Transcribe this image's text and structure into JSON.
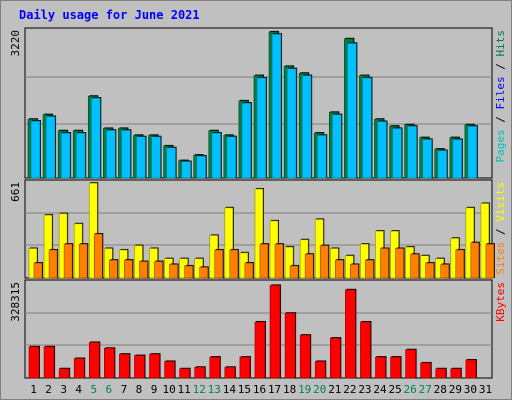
{
  "title": "Daily usage for June 2021",
  "chart_data": {
    "type": "bar",
    "title": "Daily usage for June 2021",
    "days": [
      "1",
      "2",
      "3",
      "4",
      "5",
      "6",
      "7",
      "8",
      "9",
      "10",
      "11",
      "12",
      "13",
      "14",
      "15",
      "16",
      "17",
      "18",
      "19",
      "20",
      "21",
      "22",
      "23",
      "24",
      "25",
      "26",
      "27",
      "28",
      "29",
      "30",
      "31"
    ],
    "weekend_days": [
      "5",
      "6",
      "12",
      "13",
      "19",
      "20",
      "26",
      "27"
    ],
    "colors": {
      "hits": "#008040",
      "files": "#00c0ff",
      "pages": "#00e0ff",
      "visits": "#ffff00",
      "sites": "#ff8000",
      "kbytes": "#ff0000",
      "weekday_label": "#000000",
      "weekend_label": "#00805c",
      "title": "#0000ff"
    },
    "panels": [
      {
        "id": "hits",
        "ymax_label": "3220",
        "ymax": 3220,
        "legend": [
          {
            "text": "Pages",
            "color": "#00c0c0"
          },
          {
            "text": " / ",
            "color": "#000000"
          },
          {
            "text": "Files",
            "color": "#0000ff"
          },
          {
            "text": " / ",
            "color": "#000000"
          },
          {
            "text": "Hits",
            "color": "#008040"
          }
        ],
        "series": [
          {
            "name": "Hits",
            "values": [
              1300,
              1400,
              1050,
              1050,
              1800,
              1100,
              1100,
              950,
              950,
              720,
              400,
              520,
              1050,
              950,
              1700,
              2250,
              3200,
              2450,
              2300,
              1000,
              1450,
              3050,
              2250,
              1300,
              1150,
              1180,
              900,
              650,
              900,
              1180,
              0
            ]
          },
          {
            "name": "Files",
            "values": [
              1260,
              1360,
              1000,
              1000,
              1760,
              1060,
              1060,
              920,
              920,
              680,
              380,
              500,
              1000,
              920,
              1650,
              2200,
              3150,
              2400,
              2250,
              950,
              1400,
              2950,
              2200,
              1250,
              1100,
              1150,
              860,
              620,
              860,
              1150,
              0
            ]
          }
        ]
      },
      {
        "id": "visits",
        "ymax_label": "661",
        "ymax": 661,
        "legend": [
          {
            "text": "Sites",
            "color": "#ff8000"
          },
          {
            "text": " / ",
            "color": "#000000"
          },
          {
            "text": "Visits",
            "color": "#ffff00"
          }
        ],
        "series": [
          {
            "name": "Visits",
            "values": [
              210,
              440,
              450,
              380,
              660,
              210,
              200,
              230,
              210,
              140,
              140,
              140,
              300,
              490,
              180,
              620,
              400,
              220,
              270,
              410,
              210,
              160,
              240,
              330,
              330,
              220,
              160,
              140,
              280,
              490,
              520
            ]
          },
          {
            "name": "Sites",
            "values": [
              110,
              200,
              240,
              240,
              310,
              130,
              130,
              120,
              120,
              100,
              90,
              80,
              200,
              200,
              110,
              240,
              240,
              90,
              170,
              230,
              130,
              100,
              130,
              210,
              210,
              170,
              110,
              100,
              200,
              250,
              240
            ]
          }
        ]
      },
      {
        "id": "kbytes",
        "ymax_label": "328315",
        "ymax": 328315,
        "legend": [
          {
            "text": "KBytes",
            "color": "#ff0000"
          }
        ],
        "series": [
          {
            "name": "KBytes",
            "values": [
              110000,
              110000,
              35000,
              70000,
              125000,
              105000,
              85000,
              80000,
              85000,
              60000,
              35000,
              40000,
              75000,
              40000,
              75000,
              195000,
              320000,
              225000,
              150000,
              60000,
              140000,
              305000,
              195000,
              75000,
              75000,
              100000,
              55000,
              35000,
              35000,
              65000,
              0
            ]
          }
        ]
      }
    ]
  }
}
